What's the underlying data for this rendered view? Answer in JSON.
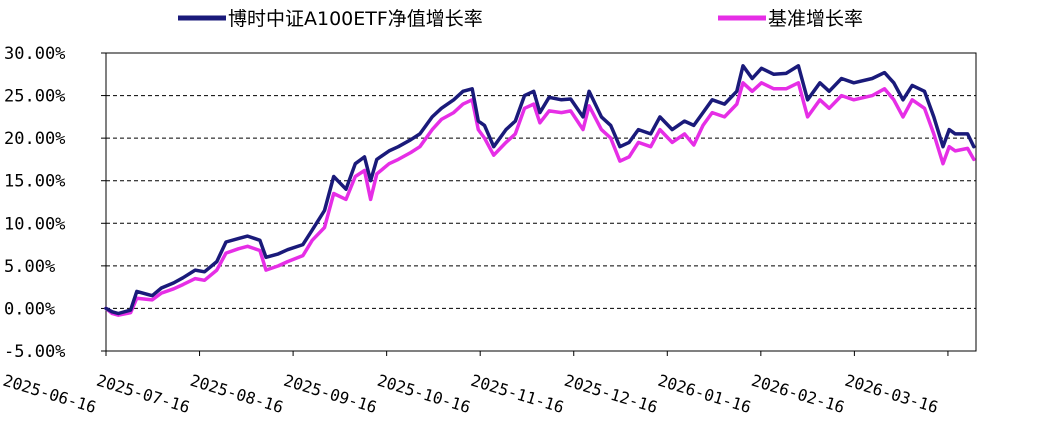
{
  "chart_data": {
    "type": "line",
    "title": "",
    "xlabel": "",
    "ylabel": "",
    "ylim": [
      -5,
      30
    ],
    "y_ticks": [
      30,
      25,
      20,
      15,
      10,
      5,
      0,
      -5
    ],
    "y_tick_labels": [
      "30.00%",
      "25.00%",
      "20.00%",
      "15.00%",
      "10.00%",
      "5.00%",
      "0.00%",
      "-5.00%"
    ],
    "x_tick_labels": [
      "2025-06-16",
      "2025-07-16",
      "2025-08-16",
      "2025-09-16",
      "2025-10-16",
      "2025-11-16",
      "2025-12-16",
      "2026-01-16",
      "2026-02-16",
      "2026-03-16"
    ],
    "grid": "horizontal-dashed",
    "legend_position": "top",
    "series": [
      {
        "name": "博时中证A100ETF净值增长率",
        "color": "#1a1a7a",
        "points": [
          [
            "2025-06-16",
            0.0
          ],
          [
            "2025-06-18",
            -0.4
          ],
          [
            "2025-06-20",
            -0.6
          ],
          [
            "2025-06-24",
            -0.2
          ],
          [
            "2025-06-26",
            2.0
          ],
          [
            "2025-07-01",
            1.5
          ],
          [
            "2025-07-04",
            2.4
          ],
          [
            "2025-07-08",
            3.0
          ],
          [
            "2025-07-11",
            3.6
          ],
          [
            "2025-07-15",
            4.5
          ],
          [
            "2025-07-18",
            4.3
          ],
          [
            "2025-07-22",
            5.5
          ],
          [
            "2025-07-25",
            7.8
          ],
          [
            "2025-07-29",
            8.2
          ],
          [
            "2025-08-01",
            8.5
          ],
          [
            "2025-08-05",
            8.0
          ],
          [
            "2025-08-07",
            6.0
          ],
          [
            "2025-08-11",
            6.4
          ],
          [
            "2025-08-14",
            6.9
          ],
          [
            "2025-08-19",
            7.5
          ],
          [
            "2025-08-22",
            9.2
          ],
          [
            "2025-08-26",
            11.5
          ],
          [
            "2025-08-29",
            15.5
          ],
          [
            "2025-09-02",
            14.0
          ],
          [
            "2025-09-05",
            17.0
          ],
          [
            "2025-09-08",
            17.8
          ],
          [
            "2025-09-10",
            15.0
          ],
          [
            "2025-09-12",
            17.5
          ],
          [
            "2025-09-16",
            18.5
          ],
          [
            "2025-09-19",
            19.0
          ],
          [
            "2025-09-23",
            19.8
          ],
          [
            "2025-09-26",
            20.5
          ],
          [
            "2025-09-30",
            22.5
          ],
          [
            "2025-10-03",
            23.5
          ],
          [
            "2025-10-07",
            24.5
          ],
          [
            "2025-10-10",
            25.5
          ],
          [
            "2025-10-13",
            25.8
          ],
          [
            "2025-10-15",
            22.0
          ],
          [
            "2025-10-17",
            21.5
          ],
          [
            "2025-10-20",
            19.0
          ],
          [
            "2025-10-24",
            21.0
          ],
          [
            "2025-10-27",
            22.0
          ],
          [
            "2025-10-30",
            25.0
          ],
          [
            "2025-11-02",
            25.5
          ],
          [
            "2025-11-04",
            23.0
          ],
          [
            "2025-11-07",
            24.8
          ],
          [
            "2025-11-11",
            24.5
          ],
          [
            "2025-11-14",
            24.6
          ],
          [
            "2025-11-18",
            22.5
          ],
          [
            "2025-11-20",
            25.5
          ],
          [
            "2025-11-24",
            22.5
          ],
          [
            "2025-11-27",
            21.5
          ],
          [
            "2025-11-30",
            19.0
          ],
          [
            "2025-12-03",
            19.5
          ],
          [
            "2025-12-06",
            21.0
          ],
          [
            "2025-12-10",
            20.5
          ],
          [
            "2025-12-13",
            22.5
          ],
          [
            "2025-12-17",
            21.0
          ],
          [
            "2025-12-21",
            22.0
          ],
          [
            "2025-12-24",
            21.5
          ],
          [
            "2025-12-27",
            23.0
          ],
          [
            "2025-12-30",
            24.5
          ],
          [
            "2026-01-03",
            24.0
          ],
          [
            "2026-01-07",
            25.5
          ],
          [
            "2026-01-09",
            28.5
          ],
          [
            "2026-01-12",
            27.0
          ],
          [
            "2026-01-15",
            28.2
          ],
          [
            "2026-01-19",
            27.5
          ],
          [
            "2026-01-23",
            27.6
          ],
          [
            "2026-01-27",
            28.5
          ],
          [
            "2026-01-30",
            24.5
          ],
          [
            "2026-02-03",
            26.5
          ],
          [
            "2026-02-06",
            25.5
          ],
          [
            "2026-02-10",
            27.0
          ],
          [
            "2026-02-14",
            26.5
          ],
          [
            "2026-02-20",
            27.0
          ],
          [
            "2026-02-24",
            27.7
          ],
          [
            "2026-02-27",
            26.5
          ],
          [
            "2026-03-02",
            24.5
          ],
          [
            "2026-03-05",
            26.2
          ],
          [
            "2026-03-09",
            25.5
          ],
          [
            "2026-03-12",
            22.5
          ],
          [
            "2026-03-15",
            19.0
          ],
          [
            "2026-03-17",
            21.0
          ],
          [
            "2026-03-19",
            20.5
          ],
          [
            "2026-03-23",
            20.5
          ],
          [
            "2026-03-25",
            19.0
          ]
        ]
      },
      {
        "name": "基准增长率",
        "color": "#e62ee6",
        "points": [
          [
            "2025-06-16",
            0.0
          ],
          [
            "2025-06-18",
            -0.6
          ],
          [
            "2025-06-20",
            -0.8
          ],
          [
            "2025-06-24",
            -0.5
          ],
          [
            "2025-06-26",
            1.2
          ],
          [
            "2025-07-01",
            1.0
          ],
          [
            "2025-07-04",
            1.8
          ],
          [
            "2025-07-08",
            2.3
          ],
          [
            "2025-07-11",
            2.8
          ],
          [
            "2025-07-15",
            3.5
          ],
          [
            "2025-07-18",
            3.3
          ],
          [
            "2025-07-22",
            4.5
          ],
          [
            "2025-07-25",
            6.5
          ],
          [
            "2025-07-29",
            7.0
          ],
          [
            "2025-08-01",
            7.3
          ],
          [
            "2025-08-05",
            6.8
          ],
          [
            "2025-08-07",
            4.5
          ],
          [
            "2025-08-11",
            5.0
          ],
          [
            "2025-08-14",
            5.5
          ],
          [
            "2025-08-19",
            6.2
          ],
          [
            "2025-08-22",
            8.0
          ],
          [
            "2025-08-26",
            9.5
          ],
          [
            "2025-08-29",
            13.5
          ],
          [
            "2025-09-02",
            12.8
          ],
          [
            "2025-09-05",
            15.5
          ],
          [
            "2025-09-08",
            16.2
          ],
          [
            "2025-09-10",
            12.8
          ],
          [
            "2025-09-12",
            15.8
          ],
          [
            "2025-09-16",
            17.0
          ],
          [
            "2025-09-19",
            17.5
          ],
          [
            "2025-09-23",
            18.3
          ],
          [
            "2025-09-26",
            19.0
          ],
          [
            "2025-09-30",
            21.0
          ],
          [
            "2025-10-03",
            22.2
          ],
          [
            "2025-10-07",
            23.0
          ],
          [
            "2025-10-10",
            24.0
          ],
          [
            "2025-10-13",
            24.5
          ],
          [
            "2025-10-15",
            21.0
          ],
          [
            "2025-10-17",
            20.0
          ],
          [
            "2025-10-20",
            18.0
          ],
          [
            "2025-10-24",
            19.5
          ],
          [
            "2025-10-27",
            20.5
          ],
          [
            "2025-10-30",
            23.5
          ],
          [
            "2025-11-02",
            24.0
          ],
          [
            "2025-11-04",
            21.8
          ],
          [
            "2025-11-07",
            23.2
          ],
          [
            "2025-11-11",
            23.0
          ],
          [
            "2025-11-14",
            23.2
          ],
          [
            "2025-11-18",
            21.0
          ],
          [
            "2025-11-20",
            23.8
          ],
          [
            "2025-11-24",
            21.0
          ],
          [
            "2025-11-27",
            20.0
          ],
          [
            "2025-11-30",
            17.3
          ],
          [
            "2025-12-03",
            17.8
          ],
          [
            "2025-12-06",
            19.5
          ],
          [
            "2025-12-10",
            19.0
          ],
          [
            "2025-12-13",
            21.0
          ],
          [
            "2025-12-17",
            19.5
          ],
          [
            "2025-12-21",
            20.5
          ],
          [
            "2025-12-24",
            19.2
          ],
          [
            "2025-12-27",
            21.5
          ],
          [
            "2025-12-30",
            23.0
          ],
          [
            "2026-01-03",
            22.5
          ],
          [
            "2026-01-07",
            24.0
          ],
          [
            "2026-01-09",
            26.5
          ],
          [
            "2026-01-12",
            25.5
          ],
          [
            "2026-01-15",
            26.5
          ],
          [
            "2026-01-19",
            25.8
          ],
          [
            "2026-01-23",
            25.8
          ],
          [
            "2026-01-27",
            26.5
          ],
          [
            "2026-01-30",
            22.5
          ],
          [
            "2026-02-03",
            24.5
          ],
          [
            "2026-02-06",
            23.5
          ],
          [
            "2026-02-10",
            25.0
          ],
          [
            "2026-02-14",
            24.5
          ],
          [
            "2026-02-20",
            25.0
          ],
          [
            "2026-02-24",
            25.8
          ],
          [
            "2026-02-27",
            24.5
          ],
          [
            "2026-03-02",
            22.5
          ],
          [
            "2026-03-05",
            24.5
          ],
          [
            "2026-03-09",
            23.5
          ],
          [
            "2026-03-12",
            20.5
          ],
          [
            "2026-03-15",
            17.0
          ],
          [
            "2026-03-17",
            19.0
          ],
          [
            "2026-03-19",
            18.5
          ],
          [
            "2026-03-23",
            18.8
          ],
          [
            "2026-03-25",
            17.5
          ]
        ]
      }
    ]
  }
}
